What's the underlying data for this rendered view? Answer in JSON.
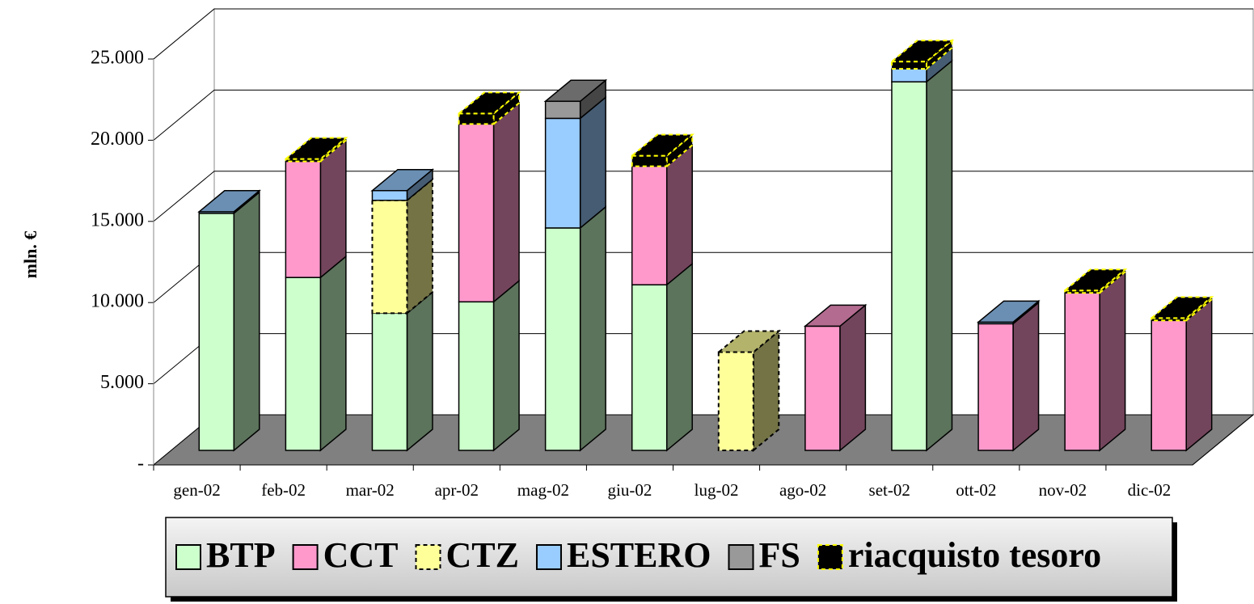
{
  "chart_data": {
    "type": "bar3d_stacked",
    "y_label": "mln. €",
    "categories": [
      "gen-02",
      "feb-02",
      "mar-02",
      "apr-02",
      "mag-02",
      "giu-02",
      "lug-02",
      "ago-02",
      "set-02",
      "ott-02",
      "nov-02",
      "dic-02"
    ],
    "series": [
      {
        "name": "BTP",
        "color": "#ccffcc",
        "values": [
          14600,
          10650,
          8450,
          9150,
          13700,
          10200,
          null,
          null,
          22700,
          null,
          null,
          null
        ]
      },
      {
        "name": "CCT",
        "color": "#ff99cc",
        "values": [
          null,
          7150,
          null,
          10950,
          null,
          7300,
          null,
          7650,
          null,
          7800,
          9700,
          8000
        ]
      },
      {
        "name": "CTZ",
        "color": "#ffff99",
        "values": [
          null,
          null,
          6950,
          null,
          null,
          null,
          6050,
          null,
          null,
          null,
          null,
          null
        ]
      },
      {
        "name": "ESTERO",
        "color": "#99ccff",
        "values": [
          100,
          null,
          600,
          null,
          6750,
          null,
          null,
          null,
          800,
          100,
          null,
          null
        ]
      },
      {
        "name": "FS",
        "color": "#999999",
        "values": [
          null,
          null,
          null,
          null,
          1050,
          null,
          null,
          null,
          null,
          null,
          null,
          null
        ]
      },
      {
        "name": "riacquisto tesoro",
        "color": "#000000",
        "values": [
          null,
          150,
          null,
          650,
          null,
          650,
          null,
          null,
          450,
          null,
          150,
          150
        ]
      }
    ],
    "ylim": [
      0,
      25000
    ],
    "yticks": [
      {
        "value": 0,
        "label": "-"
      },
      {
        "value": 5000,
        "label": "5.000"
      },
      {
        "value": 10000,
        "label": "10.000"
      },
      {
        "value": 15000,
        "label": "15.000"
      },
      {
        "value": 20000,
        "label": "20.000"
      },
      {
        "value": 25000,
        "label": "25.000"
      }
    ],
    "grid": true,
    "legend": "bottom"
  }
}
